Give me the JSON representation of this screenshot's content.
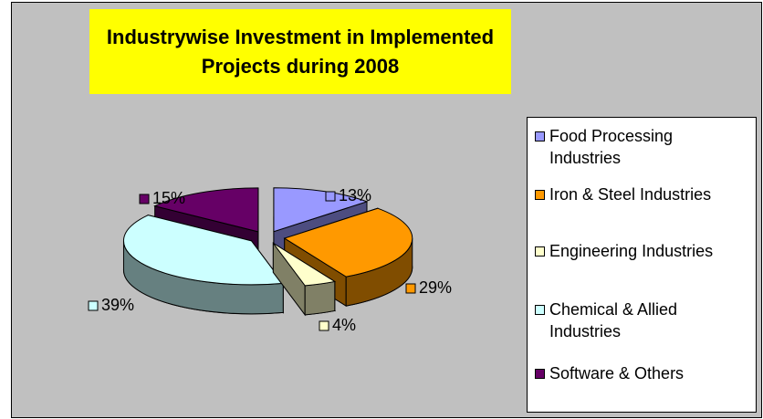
{
  "chart_data": {
    "type": "pie",
    "title": "Industrywise Investment in Implemented Projects during 2008",
    "categories": [
      "Food Processing Industries",
      "Iron & Steel Industries",
      "Engineering Industries",
      "Chemical & Allied Industries",
      "Software & Others"
    ],
    "values": [
      13,
      29,
      4,
      39,
      15
    ],
    "value_labels": [
      "13%",
      "29%",
      "4%",
      "39%",
      "15%"
    ],
    "colors": [
      "#9999ff",
      "#ff9900",
      "#ffffcc",
      "#ccffff",
      "#660066"
    ],
    "legend": "right"
  }
}
